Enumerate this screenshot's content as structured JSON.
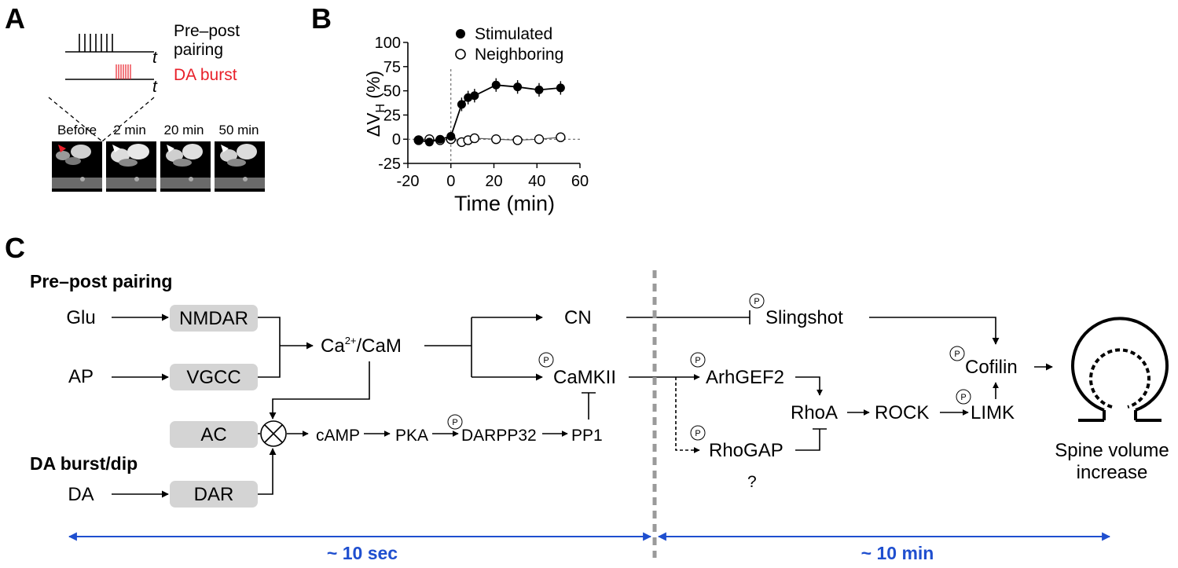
{
  "panels": {
    "a": "A",
    "b": "B",
    "c": "C"
  },
  "panel_a": {
    "trace1_label_line1": "Pre–post",
    "trace1_label_line2": "pairing",
    "trace2_label": "DA burst",
    "time_symbol": "t",
    "image_labels": [
      "Before",
      "2 min",
      "20 min",
      "50 min"
    ],
    "colors": {
      "da_burst": "#e8202a",
      "arrowhead_before": "#e8202a"
    }
  },
  "chart_data": {
    "type": "scatter",
    "xlabel": "Time (min)",
    "ylabel": "ΔV",
    "ylabel_sub": "H",
    "ylabel_unit": " (%)",
    "xlim": [
      -20,
      60
    ],
    "ylim": [
      -25,
      100
    ],
    "xticks": [
      "-20",
      "0",
      "20",
      "40",
      "60"
    ],
    "yticks": [
      "-25",
      "0",
      "25",
      "50",
      "75",
      "100"
    ],
    "legend_position": "top-right",
    "series": [
      {
        "name": "Stimulated",
        "marker": "filled",
        "x": [
          -15,
          -10,
          -5,
          0,
          5,
          8,
          11,
          21,
          31,
          41,
          51
        ],
        "y": [
          -1,
          -3,
          0,
          3,
          36,
          43,
          45,
          56,
          54,
          51,
          53
        ]
      },
      {
        "name": "Neighboring",
        "marker": "open",
        "x": [
          -15,
          -10,
          -5,
          0,
          5,
          8,
          11,
          21,
          31,
          41,
          51
        ],
        "y": [
          -1,
          0,
          -1,
          0,
          -3,
          -1,
          1,
          0,
          -1,
          0,
          2
        ]
      }
    ]
  },
  "panel_c": {
    "title_pairing": "Pre–post pairing",
    "title_da": "DA burst/dip",
    "nodes": {
      "glu": "Glu",
      "ap": "AP",
      "da": "DA",
      "nmdar": "NMDAR",
      "vgcc": "VGCC",
      "ac": "AC",
      "dar": "DAR",
      "ca": "Ca",
      "ca_sup": "2+",
      "cam": "/CaM",
      "cn": "CN",
      "camkii": "CaMKII",
      "camp": "cAMP",
      "pka": "PKA",
      "darpp32": "DARPP32",
      "pp1": "PP1",
      "slingshot": "Slingshot",
      "cofilin": "Cofilin",
      "arhgef2": "ArhGEF2",
      "rhogap": "RhoGAP",
      "question": "?",
      "rhoa": "RhoA",
      "rock": "ROCK",
      "limk": "LIMK",
      "outcome_line1": "Spine volume",
      "outcome_line2": "increase"
    },
    "phospho_symbol": "P",
    "timescale_left": "~ 10 sec",
    "timescale_right": "~ 10 min",
    "colors": {
      "timescale": "#1f4fcf",
      "node_box": "#d4d4d4",
      "divider": "#9a9a9a"
    }
  }
}
